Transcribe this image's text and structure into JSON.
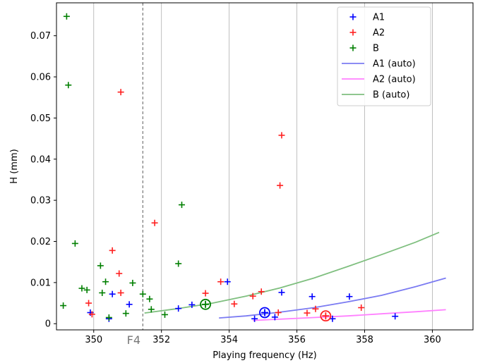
{
  "chart_data": {
    "type": "scatter",
    "xlabel": "Playing frequency (Hz)",
    "ylabel": "H (mm)",
    "xlim": [
      348.9,
      361.2
    ],
    "ylim": [
      -0.0015,
      0.078
    ],
    "xticks": [
      350,
      352,
      354,
      356,
      358,
      360
    ],
    "yticks": [
      0,
      0.01,
      0.02,
      0.03,
      0.04,
      0.05,
      0.06,
      0.07
    ],
    "ytick_labels": [
      "0",
      "0.01",
      "0.02",
      "0.03",
      "0.04",
      "0.05",
      "0.06",
      "0.07"
    ],
    "grid": "x",
    "legend_position": "top-right",
    "vline": {
      "x": 351.45,
      "label": "F4",
      "color": "#777777"
    },
    "series": [
      {
        "name": "A1",
        "kind": "scatter",
        "color": "#0000ff",
        "points": [
          [
            349.9,
            0.0027
          ],
          [
            350.45,
            0.0012
          ],
          [
            350.55,
            0.0072
          ],
          [
            351.05,
            0.0047
          ],
          [
            352.5,
            0.0037
          ],
          [
            352.9,
            0.0046
          ],
          [
            353.95,
            0.0102
          ],
          [
            354.75,
            0.0012
          ],
          [
            355.35,
            0.0016
          ],
          [
            355.55,
            0.0076
          ],
          [
            356.45,
            0.0066
          ],
          [
            357.05,
            0.0012
          ],
          [
            357.55,
            0.0066
          ],
          [
            358.9,
            0.0018
          ]
        ]
      },
      {
        "name": "A2",
        "kind": "scatter",
        "color": "#ff2020",
        "points": [
          [
            349.85,
            0.005
          ],
          [
            349.95,
            0.0023
          ],
          [
            350.55,
            0.0178
          ],
          [
            350.75,
            0.0122
          ],
          [
            350.8,
            0.0075
          ],
          [
            350.8,
            0.0563
          ],
          [
            351.8,
            0.0245
          ],
          [
            353.3,
            0.0074
          ],
          [
            353.75,
            0.0102
          ],
          [
            354.15,
            0.0048
          ],
          [
            354.7,
            0.0067
          ],
          [
            354.95,
            0.0078
          ],
          [
            355.45,
            0.0027
          ],
          [
            355.5,
            0.0336
          ],
          [
            355.55,
            0.0458
          ],
          [
            356.3,
            0.0026
          ],
          [
            356.55,
            0.0036
          ],
          [
            357.9,
            0.0039
          ]
        ]
      },
      {
        "name": "B",
        "kind": "scatter",
        "color": "#007f00",
        "points": [
          [
            349.1,
            0.0044
          ],
          [
            349.2,
            0.0747
          ],
          [
            349.25,
            0.058
          ],
          [
            349.45,
            0.0195
          ],
          [
            349.65,
            0.0086
          ],
          [
            349.8,
            0.0082
          ],
          [
            350.2,
            0.0141
          ],
          [
            350.25,
            0.0075
          ],
          [
            350.35,
            0.0102
          ],
          [
            350.45,
            0.0015
          ],
          [
            350.95,
            0.0025
          ],
          [
            351.15,
            0.0099
          ],
          [
            351.45,
            0.0072
          ],
          [
            351.65,
            0.006
          ],
          [
            351.7,
            0.0035
          ],
          [
            352.1,
            0.0022
          ],
          [
            352.5,
            0.0146
          ],
          [
            352.6,
            0.0289
          ]
        ]
      },
      {
        "name": "A1 (auto)",
        "kind": "line",
        "color": "#7b7bf2",
        "points": [
          [
            353.7,
            0.0014
          ],
          [
            354.5,
            0.0019
          ],
          [
            355.5,
            0.0028
          ],
          [
            356.5,
            0.0039
          ],
          [
            357.5,
            0.0053
          ],
          [
            358.5,
            0.0069
          ],
          [
            359.5,
            0.009
          ],
          [
            360.4,
            0.0111
          ]
        ]
      },
      {
        "name": "A2 (auto)",
        "kind": "line",
        "color": "#ff80ff",
        "points": [
          [
            354.7,
            0.0008
          ],
          [
            355.5,
            0.0011
          ],
          [
            356.5,
            0.0015
          ],
          [
            357.5,
            0.0019
          ],
          [
            358.5,
            0.0024
          ],
          [
            359.5,
            0.0029
          ],
          [
            360.4,
            0.0034
          ]
        ]
      },
      {
        "name": "B (auto)",
        "kind": "line",
        "color": "#7fbf7f",
        "points": [
          [
            351.5,
            0.0026
          ],
          [
            352.5,
            0.0037
          ],
          [
            353.5,
            0.005
          ],
          [
            354.5,
            0.0067
          ],
          [
            355.5,
            0.0087
          ],
          [
            356.5,
            0.0111
          ],
          [
            357.5,
            0.0139
          ],
          [
            358.5,
            0.0168
          ],
          [
            359.5,
            0.0198
          ],
          [
            360.2,
            0.0222
          ]
        ]
      }
    ],
    "highlight_points": [
      {
        "series": "A1",
        "x": 355.05,
        "y": 0.0027,
        "color": "#0000ff"
      },
      {
        "series": "A2",
        "x": 356.85,
        "y": 0.0019,
        "color": "#ff2020"
      },
      {
        "series": "B",
        "x": 353.3,
        "y": 0.0047,
        "color": "#007f00"
      }
    ]
  }
}
